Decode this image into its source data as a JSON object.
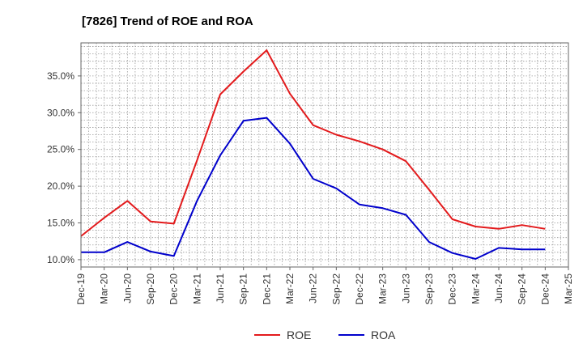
{
  "chart_data": {
    "type": "line",
    "title": "[7826]  Trend of ROE and ROA",
    "xlabel": "",
    "ylabel": "",
    "x": [
      "Dec-19",
      "Mar-20",
      "Jun-20",
      "Sep-20",
      "Dec-20",
      "Mar-21",
      "Jun-21",
      "Sep-21",
      "Dec-21",
      "Mar-22",
      "Jun-22",
      "Sep-22",
      "Dec-22",
      "Mar-23",
      "Jun-23",
      "Sep-23",
      "Dec-23",
      "Mar-24",
      "Jun-24",
      "Sep-24",
      "Dec-24",
      "Mar-25"
    ],
    "ylim": [
      9.0,
      39.5
    ],
    "yticks": [
      10,
      15,
      20,
      25,
      30,
      35
    ],
    "ytick_labels": [
      "10.0%",
      "15.0%",
      "20.0%",
      "25.0%",
      "30.0%",
      "35.0%"
    ],
    "grid": true,
    "legend_position": "bottom",
    "series": [
      {
        "name": "ROE",
        "color": "#e31a1c",
        "values": [
          13.2,
          15.7,
          18.0,
          15.2,
          14.9,
          23.5,
          32.5,
          35.6,
          38.5,
          32.6,
          28.3,
          27.0,
          26.1,
          25.0,
          23.4,
          19.5,
          15.5,
          14.5,
          14.2,
          14.7,
          14.2,
          null
        ]
      },
      {
        "name": "ROA",
        "color": "#0000cc",
        "values": [
          11.0,
          11.0,
          12.4,
          11.1,
          10.5,
          18.0,
          24.2,
          28.9,
          29.3,
          25.8,
          21.0,
          19.7,
          17.5,
          17.0,
          16.1,
          12.4,
          10.9,
          10.1,
          11.6,
          11.4,
          11.4,
          null
        ]
      }
    ]
  }
}
